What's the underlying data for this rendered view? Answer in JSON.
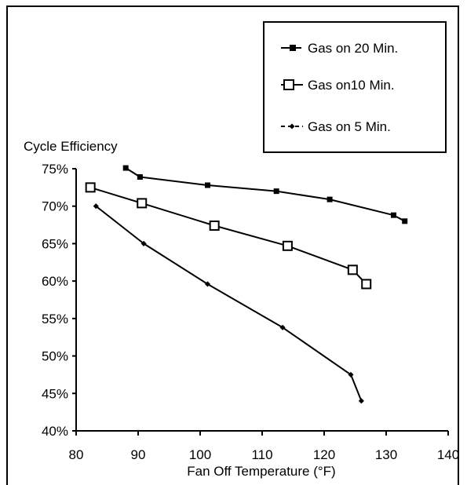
{
  "chart_data": {
    "type": "line",
    "title": "",
    "xlabel": "Fan Off Temperature (°F)",
    "ylabel": "Cycle Efficiency",
    "xlim": [
      80,
      140
    ],
    "ylim": [
      40,
      75
    ],
    "x_ticks": [
      "80",
      "90",
      "100",
      "110",
      "120",
      "130",
      "140"
    ],
    "y_ticks": [
      "40%",
      "45%",
      "50%",
      "55%",
      "60%",
      "65%",
      "70%",
      "75%"
    ],
    "grid": false,
    "legend_position": "top-right",
    "series": [
      {
        "name": "Gas on 20 Min.",
        "marker": "filled-square",
        "color": "#000000",
        "x": [
          88,
          90.3,
          101.2,
          112.3,
          120.9,
          131.2,
          133
        ],
        "y": [
          75.1,
          73.9,
          72.8,
          72.0,
          70.9,
          68.8,
          68.0
        ]
      },
      {
        "name": "Gas on10 Min.",
        "marker": "open-square",
        "color": "#000000",
        "x": [
          82.3,
          90.6,
          102.3,
          114.1,
          124.6,
          126.8
        ],
        "y": [
          72.5,
          70.4,
          67.4,
          64.7,
          61.5,
          59.6
        ]
      },
      {
        "name": "Gas on 5 Min.",
        "marker": "small-diamond",
        "color": "#000000",
        "x": [
          83.2,
          90.9,
          101.2,
          113.3,
          124.3,
          126
        ],
        "y": [
          70.0,
          65.0,
          59.6,
          53.8,
          47.5,
          44.0
        ]
      }
    ]
  }
}
